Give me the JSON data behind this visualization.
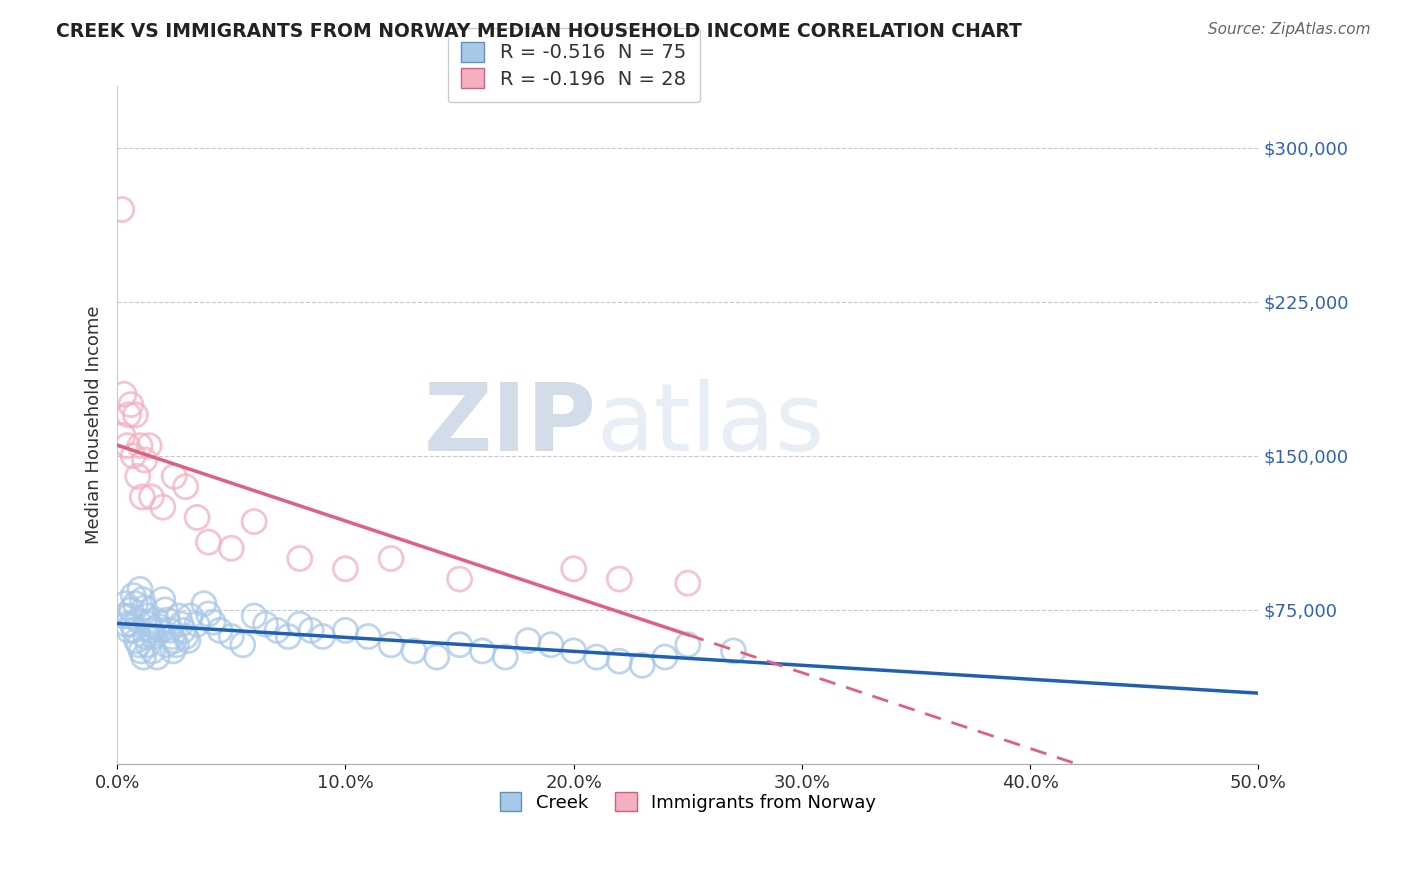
{
  "title": "CREEK VS IMMIGRANTS FROM NORWAY MEDIAN HOUSEHOLD INCOME CORRELATION CHART",
  "source": "Source: ZipAtlas.com",
  "ylabel": "Median Household Income",
  "xlim": [
    0.0,
    50.0
  ],
  "ylim": [
    0,
    330000
  ],
  "yticks": [
    75000,
    150000,
    225000,
    300000
  ],
  "ytick_labels": [
    "$75,000",
    "$150,000",
    "$225,000",
    "$300,000"
  ],
  "xtick_labels": [
    "0.0%",
    "10.0%",
    "20.0%",
    "30.0%",
    "40.0%",
    "50.0%"
  ],
  "xtick_vals": [
    0,
    10,
    20,
    30,
    40,
    50
  ],
  "watermark_zip": "ZIP",
  "watermark_atlas": "atlas",
  "legend1_label": "R = -0.516  N = 75",
  "legend2_label": "R = -0.196  N = 28",
  "blue_color": "#a8c8e8",
  "pink_color": "#f4b0c0",
  "blue_line_color": "#2060b0",
  "pink_line_color": "#e06080",
  "grid_color": "#c8c8d0",
  "background_color": "#ffffff",
  "creek_x": [
    0.3,
    0.4,
    0.5,
    0.6,
    0.7,
    0.8,
    0.9,
    1.0,
    1.1,
    1.2,
    1.3,
    1.4,
    1.5,
    1.6,
    1.7,
    1.8,
    1.9,
    2.0,
    2.1,
    2.2,
    2.3,
    2.4,
    2.5,
    2.6,
    2.7,
    2.8,
    2.9,
    3.0,
    3.2,
    3.5,
    3.8,
    4.0,
    4.2,
    4.5,
    5.0,
    5.5,
    6.0,
    6.5,
    7.0,
    7.5,
    8.0,
    8.5,
    9.0,
    10.0,
    11.0,
    12.0,
    13.0,
    14.0,
    15.0,
    16.0,
    17.0,
    18.0,
    19.0,
    20.0,
    21.0,
    22.0,
    23.0,
    24.0,
    25.0,
    27.0,
    0.35,
    0.55,
    0.65,
    0.75,
    0.85,
    0.95,
    1.05,
    1.15,
    1.25,
    1.35,
    1.55,
    1.75,
    2.15,
    2.45,
    3.1
  ],
  "creek_y": [
    72000,
    68000,
    65000,
    75000,
    82000,
    78000,
    70000,
    85000,
    80000,
    76000,
    72000,
    68000,
    65000,
    62000,
    70000,
    67000,
    65000,
    80000,
    75000,
    70000,
    65000,
    62000,
    60000,
    58000,
    72000,
    68000,
    65000,
    62000,
    72000,
    68000,
    78000,
    73000,
    69000,
    65000,
    62000,
    58000,
    72000,
    68000,
    65000,
    62000,
    68000,
    65000,
    62000,
    65000,
    62000,
    58000,
    55000,
    52000,
    58000,
    55000,
    52000,
    60000,
    58000,
    55000,
    52000,
    50000,
    48000,
    52000,
    58000,
    55000,
    78000,
    72000,
    68000,
    65000,
    60000,
    58000,
    55000,
    52000,
    62000,
    58000,
    55000,
    52000,
    58000,
    55000,
    60000
  ],
  "norway_x": [
    0.2,
    0.3,
    0.5,
    0.6,
    0.8,
    1.0,
    1.2,
    1.4,
    1.5,
    2.0,
    2.5,
    3.0,
    3.5,
    4.0,
    5.0,
    6.0,
    8.0,
    10.0,
    12.0,
    15.0,
    20.0,
    22.0,
    25.0,
    0.25,
    0.45,
    0.7,
    0.9,
    1.1
  ],
  "norway_y": [
    270000,
    180000,
    170000,
    175000,
    170000,
    155000,
    148000,
    155000,
    130000,
    125000,
    140000,
    135000,
    120000,
    108000,
    105000,
    118000,
    100000,
    95000,
    100000,
    90000,
    95000,
    90000,
    88000,
    160000,
    155000,
    150000,
    140000,
    130000
  ]
}
